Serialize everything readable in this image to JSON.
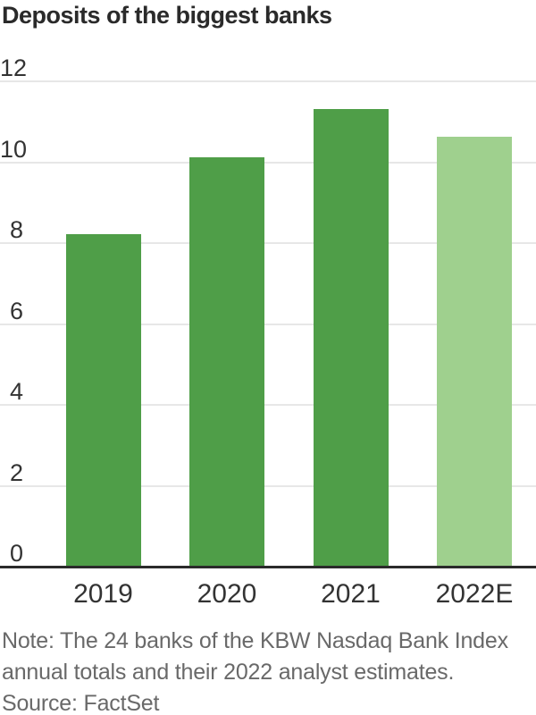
{
  "chart_data": {
    "type": "bar",
    "title": "Deposits of the biggest banks",
    "categories": [
      "2019",
      "2020",
      "2021",
      "2022E"
    ],
    "values": [
      8.2,
      10.1,
      11.3,
      10.6
    ],
    "ylim": [
      0,
      12
    ],
    "yticks": [
      0,
      2,
      4,
      6,
      8,
      10,
      12
    ],
    "grid": "horizontal gridlines on",
    "legend": "none",
    "bar_colors": [
      "#4f9e48",
      "#4f9e48",
      "#4f9e48",
      "#9fd08e"
    ]
  },
  "notes": {
    "line1": "Note: The 24 banks of the KBW Nasdaq Bank Index",
    "line2": "annual totals and their 2022 analyst estimates.",
    "source": "Source: FactSet"
  },
  "colors": {
    "bar_actual": "#4f9e48",
    "bar_estimate": "#9fd08e",
    "gridline": "#e7e7e7",
    "axis_line": "#2b2b2b",
    "title_text": "#2a2a2a",
    "tick_text": "#333333",
    "note_text": "#696969"
  }
}
